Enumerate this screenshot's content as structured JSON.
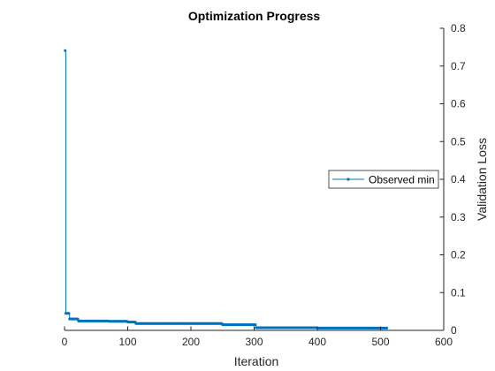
{
  "chart_data": {
    "type": "line",
    "title": "Optimization Progress",
    "xlabel": "Iteration",
    "ylabel": "Validation Loss",
    "xlim": [
      0,
      600
    ],
    "ylim": [
      0,
      0.8
    ],
    "xticks": [
      "0",
      "100",
      "200",
      "300",
      "400",
      "500",
      "600"
    ],
    "yticks": [
      "0",
      "0.1",
      "0.2",
      "0.3",
      "0.4",
      "0.5",
      "0.6",
      "0.7",
      "0.8"
    ],
    "y_axis_side": "right",
    "grid": false,
    "legend_position": "right",
    "series": [
      {
        "name": "Observed min",
        "color": "#0072BD",
        "step": true,
        "points": [
          [
            1,
            0.741
          ],
          [
            2,
            0.045
          ],
          [
            8,
            0.03
          ],
          [
            22,
            0.025
          ],
          [
            70,
            0.024
          ],
          [
            100,
            0.022
          ],
          [
            113,
            0.018
          ],
          [
            250,
            0.015
          ],
          [
            303,
            0.007
          ],
          [
            400,
            0.006
          ],
          [
            510,
            0.006
          ]
        ]
      }
    ]
  }
}
